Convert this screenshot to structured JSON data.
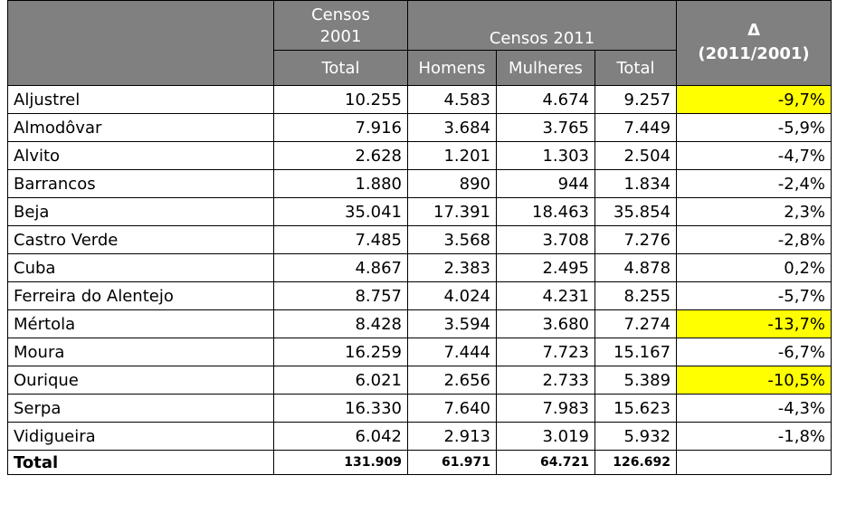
{
  "header": {
    "censos_2001": [
      "Censos",
      "2001"
    ],
    "censos_2011": "Censos 2011",
    "delta": [
      "Δ",
      "(2011/2001)"
    ],
    "total_2001": "Total",
    "homens": "Homens",
    "mulheres": "Mulheres",
    "total_2011": "Total"
  },
  "highlight_color": "#ffff00",
  "table": {
    "rows": [
      {
        "cells": [
          "Aljustrel",
          "10.255",
          "4.583",
          "4.674",
          "9.257",
          "-9,7%"
        ],
        "highlight": true
      },
      {
        "cells": [
          "Almodôvar",
          "7.916",
          "3.684",
          "3.765",
          "7.449",
          "-5,9%"
        ],
        "highlight": false
      },
      {
        "cells": [
          "Alvito",
          "2.628",
          "1.201",
          "1.303",
          "2.504",
          "-4,7%"
        ],
        "highlight": false
      },
      {
        "cells": [
          "Barrancos",
          "1.880",
          "890",
          "944",
          "1.834",
          "-2,4%"
        ],
        "highlight": false
      },
      {
        "cells": [
          "Beja",
          "35.041",
          "17.391",
          "18.463",
          "35.854",
          "2,3%"
        ],
        "highlight": false
      },
      {
        "cells": [
          "Castro Verde",
          "7.485",
          "3.568",
          "3.708",
          "7.276",
          "-2,8%"
        ],
        "highlight": false
      },
      {
        "cells": [
          "Cuba",
          "4.867",
          "2.383",
          "2.495",
          "4.878",
          "0,2%"
        ],
        "highlight": false
      },
      {
        "cells": [
          "Ferreira do Alentejo",
          "8.757",
          "4.024",
          "4.231",
          "8.255",
          "-5,7%"
        ],
        "highlight": false
      },
      {
        "cells": [
          "Mértola",
          "8.428",
          "3.594",
          "3.680",
          "7.274",
          "-13,7%"
        ],
        "highlight": true
      },
      {
        "cells": [
          "Moura",
          "16.259",
          "7.444",
          "7.723",
          "15.167",
          "-6,7%"
        ],
        "highlight": false
      },
      {
        "cells": [
          "Ourique",
          "6.021",
          "2.656",
          "2.733",
          "5.389",
          "-10,5%"
        ],
        "highlight": true
      },
      {
        "cells": [
          "Serpa",
          "16.330",
          "7.640",
          "7.983",
          "15.623",
          "-4,3%"
        ],
        "highlight": false
      },
      {
        "cells": [
          "Vidigueira",
          "6.042",
          "2.913",
          "3.019",
          "5.932",
          "-1,8%"
        ],
        "highlight": false
      }
    ],
    "total": [
      "Total",
      "131.909",
      "61.971",
      "64.721",
      "126.692"
    ]
  }
}
